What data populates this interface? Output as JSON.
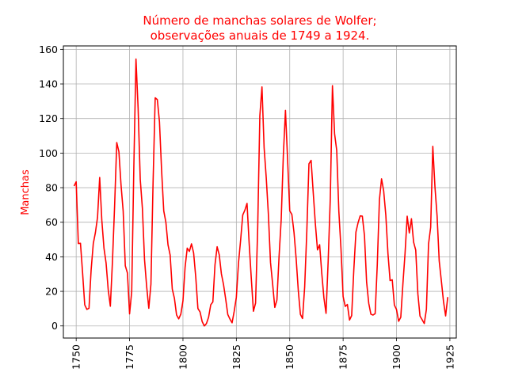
{
  "chart_data": {
    "type": "line",
    "title_lines": [
      "Número de manchas solares de Wolfer;",
      "observações anuais de 1749 a 1924."
    ],
    "xlabel": "",
    "ylabel": "Manchas",
    "xlim": [
      1744,
      1928
    ],
    "ylim": [
      -7,
      162
    ],
    "xticks": [
      1750,
      1775,
      1800,
      1825,
      1850,
      1875,
      1900,
      1925
    ],
    "yticks": [
      0,
      20,
      40,
      60,
      80,
      100,
      120,
      140,
      160
    ],
    "grid": true,
    "line_color": "#ff0000",
    "series": [
      {
        "x": [
          1749,
          1750,
          1751,
          1752,
          1753,
          1754,
          1755,
          1756,
          1757,
          1758,
          1759,
          1760,
          1761,
          1762,
          1763,
          1764,
          1765,
          1766,
          1767,
          1768,
          1769,
          1770,
          1771,
          1772,
          1773,
          1774,
          1775,
          1776,
          1777,
          1778,
          1779,
          1780,
          1781,
          1782,
          1783,
          1784,
          1785,
          1786,
          1787,
          1788,
          1789,
          1790,
          1791,
          1792,
          1793,
          1794,
          1795,
          1796,
          1797,
          1798,
          1799,
          1800,
          1801,
          1802,
          1803,
          1804,
          1805,
          1806,
          1807,
          1808,
          1809,
          1810,
          1811,
          1812,
          1813,
          1814,
          1815,
          1816,
          1817,
          1818,
          1819,
          1820,
          1821,
          1822,
          1823,
          1824,
          1825,
          1826,
          1827,
          1828,
          1829,
          1830,
          1831,
          1832,
          1833,
          1834,
          1835,
          1836,
          1837,
          1838,
          1839,
          1840,
          1841,
          1842,
          1843,
          1844,
          1845,
          1846,
          1847,
          1848,
          1849,
          1850,
          1851,
          1852,
          1853,
          1854,
          1855,
          1856,
          1857,
          1858,
          1859,
          1860,
          1861,
          1862,
          1863,
          1864,
          1865,
          1866,
          1867,
          1868,
          1869,
          1870,
          1871,
          1872,
          1873,
          1874,
          1875,
          1876,
          1877,
          1878,
          1879,
          1880,
          1881,
          1882,
          1883,
          1884,
          1885,
          1886,
          1887,
          1888,
          1889,
          1890,
          1891,
          1892,
          1893,
          1894,
          1895,
          1896,
          1897,
          1898,
          1899,
          1900,
          1901,
          1902,
          1903,
          1904,
          1905,
          1906,
          1907,
          1908,
          1909,
          1910,
          1911,
          1912,
          1913,
          1914,
          1915,
          1916,
          1917,
          1918,
          1919,
          1920,
          1921,
          1922,
          1923,
          1924
        ],
        "y": [
          80.9,
          83.4,
          47.7,
          47.8,
          30.7,
          12.2,
          9.6,
          10.2,
          32.4,
          47.6,
          54.0,
          62.9,
          85.9,
          61.2,
          45.1,
          36.4,
          20.9,
          11.4,
          37.8,
          69.8,
          106.1,
          100.8,
          81.6,
          66.5,
          34.8,
          30.6,
          7.0,
          19.8,
          92.5,
          154.4,
          125.9,
          84.8,
          68.1,
          38.5,
          22.8,
          10.2,
          24.1,
          82.9,
          132.0,
          130.9,
          118.1,
          89.9,
          66.6,
          60.0,
          46.9,
          41.0,
          21.3,
          16.0,
          6.4,
          4.1,
          6.8,
          14.5,
          34.0,
          45.0,
          43.1,
          47.5,
          42.2,
          28.1,
          10.1,
          8.1,
          2.5,
          0.0,
          1.4,
          5.0,
          12.2,
          13.9,
          35.4,
          45.8,
          41.1,
          30.1,
          23.9,
          15.6,
          6.6,
          4.0,
          1.8,
          8.5,
          16.6,
          36.3,
          49.6,
          64.2,
          67.0,
          70.9,
          47.8,
          27.5,
          8.5,
          13.2,
          56.9,
          121.5,
          138.3,
          103.2,
          85.7,
          64.6,
          36.7,
          24.2,
          10.7,
          15.0,
          40.1,
          61.5,
          98.5,
          124.7,
          96.3,
          66.6,
          64.5,
          54.1,
          39.0,
          20.6,
          6.7,
          4.3,
          22.7,
          54.8,
          93.8,
          95.8,
          77.2,
          59.1,
          44.0,
          47.0,
          30.5,
          16.3,
          7.3,
          37.6,
          74.0,
          139.0,
          111.2,
          101.6,
          66.2,
          44.7,
          17.0,
          11.3,
          12.4,
          3.4,
          6.0,
          32.3,
          54.3,
          59.7,
          63.7,
          63.5,
          52.2,
          25.4,
          13.1,
          6.8,
          6.3,
          7.1,
          35.6,
          73.0,
          85.1,
          78.0,
          64.0,
          41.8,
          26.2,
          26.7,
          12.1,
          9.5,
          2.7,
          5.0,
          24.4,
          42.0,
          63.5,
          53.8,
          62.0,
          48.5,
          43.9,
          18.6,
          5.7,
          3.6,
          1.4,
          9.6,
          47.4,
          57.1,
          103.9,
          80.6,
          63.6,
          37.6,
          26.1,
          14.2,
          5.8,
          16.7
        ]
      }
    ]
  }
}
